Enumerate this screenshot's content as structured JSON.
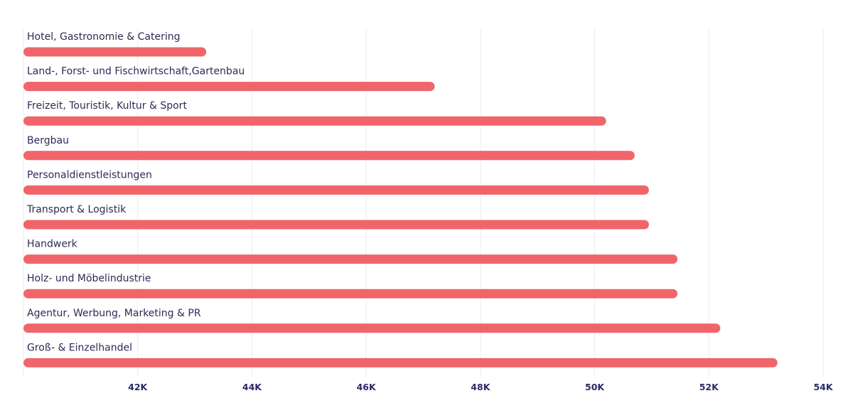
{
  "colors": {
    "bar": "#f0656a",
    "label": "#2b2b55",
    "tick": "#2b2b66",
    "grid": "#ececf2"
  },
  "chart_data": {
    "type": "bar",
    "orientation": "horizontal",
    "title": "",
    "xlabel": "",
    "ylabel": "",
    "categories": [
      "Hotel, Gastronomie & Catering",
      "Land-, Forst- und Fischwirtschaft,Gartenbau",
      "Freizeit, Touristik, Kultur & Sport",
      "Bergbau",
      "Personaldienstleistungen",
      "Transport & Logistik",
      "Handwerk",
      "Holz- und Möbelindustrie",
      "Agentur, Werbung, Marketing & PR",
      "Groß- & Einzelhandel"
    ],
    "values": [
      43200,
      47200,
      50200,
      50700,
      50950,
      50950,
      51450,
      51450,
      52200,
      53200
    ],
    "xlim": [
      40000,
      54000
    ],
    "x_ticks": [
      42000,
      44000,
      46000,
      48000,
      50000,
      52000,
      54000
    ],
    "x_tick_labels": [
      "42K",
      "44K",
      "46K",
      "48K",
      "50K",
      "52K",
      "54K"
    ],
    "grid": true,
    "legend": "none"
  }
}
